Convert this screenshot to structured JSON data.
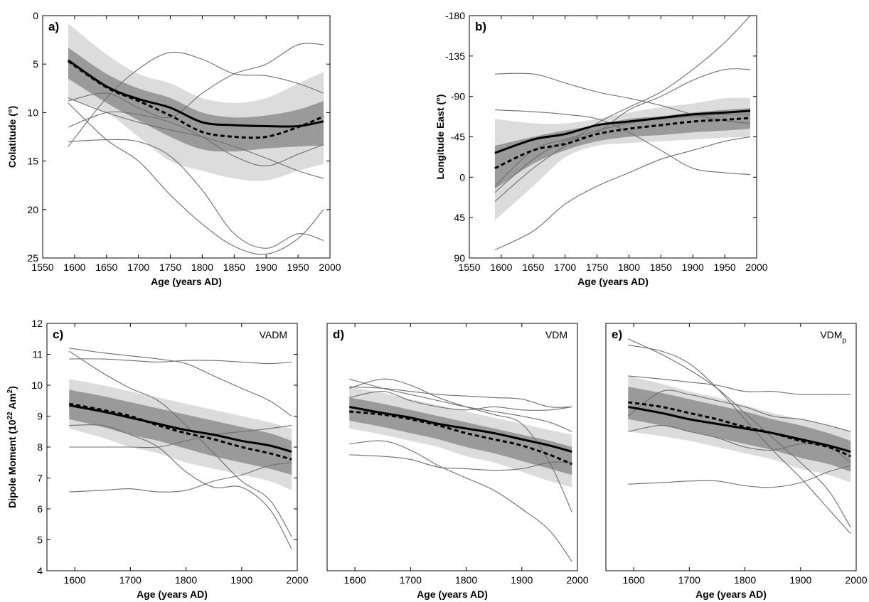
{
  "chart_data": [
    {
      "id": "a",
      "type": "line",
      "panel_label": "a)",
      "tag": "",
      "xlabel": "Age (years AD)",
      "ylabel": "Colatitude (°)",
      "xlim": [
        1550,
        2000
      ],
      "ylim": [
        0,
        25
      ],
      "y_inverted": true,
      "xticks": [
        1550,
        1600,
        1650,
        1700,
        1750,
        1800,
        1850,
        1900,
        1950,
        2000
      ],
      "yticks": [
        0,
        5,
        10,
        15,
        20,
        25
      ],
      "x": [
        1590,
        1650,
        1700,
        1750,
        1800,
        1850,
        1900,
        1950,
        1990
      ],
      "bands": [
        {
          "name": "outer",
          "color": "#dcdcdc",
          "lower": [
            0.8,
            4.0,
            6.0,
            7.0,
            8.5,
            9.0,
            8.5,
            7.0,
            5.8
          ],
          "upper": [
            8.5,
            10.0,
            12.5,
            15.0,
            16.0,
            16.8,
            17.0,
            16.0,
            15.3
          ]
        },
        {
          "name": "inner",
          "color": "#9a9a9a",
          "lower": [
            3.3,
            6.0,
            7.5,
            8.5,
            10.0,
            10.5,
            10.3,
            9.7,
            8.8
          ],
          "upper": [
            6.5,
            9.0,
            10.8,
            12.5,
            13.8,
            14.0,
            13.7,
            13.5,
            13.4
          ]
        }
      ],
      "series": [
        {
          "name": "",
          "role": "mean",
          "color": "#000000",
          "values": [
            4.6,
            7.3,
            8.6,
            9.5,
            11.0,
            11.3,
            11.4,
            11.4,
            10.9
          ]
        },
        {
          "name": "",
          "role": "median",
          "color": "#000000",
          "values": [
            4.7,
            7.4,
            8.8,
            10.3,
            12.0,
            12.5,
            12.5,
            11.5,
            10.4
          ]
        }
      ],
      "traces": [
        [
          8.5,
          10.0,
          11.0,
          11.8,
          12.5,
          13.5,
          14.7,
          16.0,
          16.8
        ],
        [
          13.5,
          8.5,
          5.5,
          3.8,
          4.5,
          6.0,
          6.2,
          7.0,
          8.0
        ],
        [
          9.0,
          12.8,
          15.0,
          18.5,
          21.5,
          23.8,
          24.6,
          23.0,
          20.0
        ],
        [
          11.5,
          10.0,
          10.2,
          11.0,
          12.5,
          14.5,
          15.5,
          14.3,
          13.3
        ],
        [
          13.0,
          12.8,
          13.0,
          14.5,
          18.0,
          22.5,
          24.0,
          22.5,
          23.2
        ],
        [
          8.8,
          8.0,
          9.5,
          10.5,
          8.0,
          6.0,
          5.0,
          3.0,
          3.0
        ]
      ]
    },
    {
      "id": "b",
      "type": "line",
      "panel_label": "b)",
      "tag": "",
      "xlabel": "Age (years AD)",
      "ylabel": "Longitude East (°)",
      "xlim": [
        1550,
        2000
      ],
      "ylim": [
        -180,
        90
      ],
      "y_inverted": true,
      "xticks": [
        1550,
        1600,
        1650,
        1700,
        1750,
        1800,
        1850,
        1900,
        1950,
        2000
      ],
      "yticks": [
        -180,
        -135,
        -90,
        -45,
        0,
        45,
        90
      ],
      "x": [
        1590,
        1650,
        1700,
        1750,
        1800,
        1850,
        1900,
        1950,
        1990
      ],
      "bands": [
        {
          "name": "outer",
          "color": "#dcdcdc",
          "lower": [
            -65,
            -60,
            -60,
            -65,
            -72,
            -78,
            -82,
            -88,
            -88
          ],
          "upper": [
            48,
            10,
            -22,
            -35,
            -38,
            -40,
            -42,
            -44,
            -45
          ]
        },
        {
          "name": "inner",
          "color": "#9a9a9a",
          "lower": [
            -35,
            -45,
            -52,
            -58,
            -65,
            -68,
            -72,
            -75,
            -77
          ],
          "upper": [
            13,
            -15,
            -30,
            -40,
            -45,
            -47,
            -50,
            -52,
            -54
          ]
        }
      ],
      "series": [
        {
          "name": "",
          "role": "mean",
          "color": "#000000",
          "values": [
            -27,
            -42,
            -48,
            -58,
            -62,
            -66,
            -70,
            -72,
            -74
          ]
        },
        {
          "name": "",
          "role": "median",
          "color": "#000000",
          "values": [
            -10,
            -30,
            -37,
            -48,
            -54,
            -58,
            -62,
            -64,
            -66
          ]
        }
      ],
      "traces": [
        [
          -115,
          -115,
          -105,
          -95,
          -88,
          -80,
          -70,
          -63,
          -60
        ],
        [
          -75,
          -73,
          -70,
          -65,
          -50,
          -30,
          -10,
          -5,
          -3
        ],
        [
          81,
          60,
          30,
          10,
          -5,
          -20,
          -30,
          -40,
          -45
        ],
        [
          27,
          -10,
          -35,
          -60,
          -78,
          -95,
          -120,
          -150,
          -180
        ],
        [
          17,
          -20,
          -40,
          -50,
          -75,
          -90,
          -108,
          -120,
          -120
        ],
        [
          10,
          -30,
          -42,
          -52,
          -60,
          -65,
          -68,
          -70,
          -70
        ]
      ]
    },
    {
      "id": "c",
      "type": "line",
      "panel_label": "c)",
      "tag": "VADM",
      "xlabel": "Age (years AD)",
      "ylabel": "Dipole Moment (10²² Am²)",
      "xlim": [
        1550,
        2000
      ],
      "ylim": [
        4,
        12
      ],
      "y_inverted": false,
      "xticks": [
        1600,
        1700,
        1800,
        1900,
        2000
      ],
      "yticks": [
        4,
        5,
        6,
        7,
        8,
        9,
        10,
        11,
        12
      ],
      "x": [
        1590,
        1650,
        1700,
        1750,
        1800,
        1850,
        1900,
        1950,
        1990
      ],
      "bands": [
        {
          "name": "outer",
          "color": "#dcdcdc",
          "lower": [
            8.6,
            8.3,
            8.0,
            7.8,
            7.5,
            7.3,
            7.1,
            6.9,
            6.6
          ],
          "upper": [
            10.2,
            10.0,
            9.8,
            9.6,
            9.4,
            9.2,
            9.0,
            8.8,
            8.6
          ]
        },
        {
          "name": "inner",
          "color": "#9a9a9a",
          "lower": [
            8.9,
            8.65,
            8.4,
            8.2,
            7.95,
            7.7,
            7.5,
            7.3,
            7.1
          ],
          "upper": [
            9.85,
            9.65,
            9.45,
            9.25,
            9.05,
            8.85,
            8.65,
            8.45,
            8.2
          ]
        }
      ],
      "series": [
        {
          "name": "",
          "role": "mean",
          "color": "#000000",
          "values": [
            9.35,
            9.15,
            8.95,
            8.75,
            8.55,
            8.4,
            8.2,
            8.05,
            7.85
          ]
        },
        {
          "name": "",
          "role": "median",
          "color": "#000000",
          "values": [
            9.4,
            9.2,
            9.0,
            8.7,
            8.45,
            8.25,
            8.0,
            7.8,
            7.6
          ]
        }
      ],
      "traces": [
        [
          11.2,
          11.05,
          10.95,
          10.85,
          10.7,
          10.3,
          9.9,
          9.5,
          9.0
        ],
        [
          10.85,
          10.85,
          10.8,
          10.75,
          10.8,
          10.8,
          10.75,
          10.7,
          10.75
        ],
        [
          11.1,
          10.4,
          9.9,
          9.5,
          8.7,
          7.8,
          6.9,
          6.3,
          5.1
        ],
        [
          8.7,
          8.7,
          8.4,
          8.0,
          7.2,
          6.7,
          6.7,
          6.0,
          4.7
        ],
        [
          8.0,
          8.0,
          8.0,
          8.0,
          8.2,
          8.4,
          8.5,
          8.6,
          8.7
        ],
        [
          6.55,
          6.6,
          6.65,
          6.55,
          6.6,
          6.9,
          7.1,
          7.4,
          7.5
        ]
      ]
    },
    {
      "id": "d",
      "type": "line",
      "panel_label": "d)",
      "tag": "VDM",
      "xlabel": "Age (years AD)",
      "ylabel": "",
      "xlim": [
        1550,
        2000
      ],
      "ylim": [
        4,
        12
      ],
      "y_inverted": false,
      "xticks": [
        1600,
        1700,
        1800,
        1900,
        2000
      ],
      "yticks": [],
      "x": [
        1590,
        1650,
        1700,
        1750,
        1800,
        1850,
        1900,
        1950,
        1990
      ],
      "bands": [
        {
          "name": "outer",
          "color": "#dcdcdc",
          "lower": [
            8.6,
            8.4,
            8.2,
            8.0,
            7.7,
            7.5,
            7.2,
            6.9,
            6.7
          ],
          "upper": [
            9.95,
            9.75,
            9.55,
            9.35,
            9.15,
            8.95,
            8.75,
            8.55,
            8.4
          ]
        },
        {
          "name": "inner",
          "color": "#9a9a9a",
          "lower": [
            8.85,
            8.65,
            8.45,
            8.25,
            8.0,
            7.8,
            7.55,
            7.3,
            7.1
          ],
          "upper": [
            9.6,
            9.4,
            9.2,
            9.0,
            8.8,
            8.6,
            8.4,
            8.2,
            8.0
          ]
        }
      ],
      "series": [
        {
          "name": "",
          "role": "mean",
          "color": "#000000",
          "values": [
            9.3,
            9.1,
            8.95,
            8.75,
            8.6,
            8.45,
            8.25,
            8.05,
            7.85
          ]
        },
        {
          "name": "",
          "role": "median",
          "color": "#000000",
          "values": [
            9.15,
            9.05,
            8.9,
            8.7,
            8.45,
            8.25,
            8.05,
            7.75,
            7.45
          ]
        }
      ],
      "traces": [
        [
          10.2,
          9.9,
          9.7,
          9.5,
          9.3,
          9.15,
          9.0,
          8.8,
          8.5
        ],
        [
          9.9,
          10.2,
          10.0,
          9.6,
          9.3,
          9.05,
          8.75,
          7.5,
          5.9
        ],
        [
          9.6,
          9.8,
          9.5,
          9.3,
          9.2,
          9.3,
          9.2,
          9.2,
          9.3
        ],
        [
          8.1,
          8.2,
          7.9,
          7.4,
          7.0,
          6.6,
          6.0,
          5.3,
          4.3
        ],
        [
          7.75,
          7.7,
          7.6,
          7.35,
          7.3,
          7.25,
          7.3,
          7.5,
          7.5
        ],
        [
          9.95,
          9.9,
          9.8,
          9.7,
          9.65,
          9.6,
          9.55,
          9.3,
          9.3
        ]
      ]
    },
    {
      "id": "e",
      "type": "line",
      "panel_label": "e)",
      "tag_main": "VDM",
      "tag_sub": "p",
      "xlabel": "Age (years AD)",
      "ylabel": "",
      "xlim": [
        1550,
        2000
      ],
      "ylim": [
        4,
        12
      ],
      "y_inverted": false,
      "xticks": [
        1600,
        1700,
        1800,
        1900,
        2000
      ],
      "yticks": [],
      "x": [
        1590,
        1650,
        1700,
        1750,
        1800,
        1850,
        1900,
        1950,
        1990
      ],
      "bands": [
        {
          "name": "outer",
          "color": "#dcdcdc",
          "lower": [
            8.5,
            8.35,
            8.2,
            8.0,
            7.8,
            7.6,
            7.3,
            7.1,
            6.85
          ],
          "upper": [
            10.3,
            10.05,
            9.8,
            9.6,
            9.35,
            9.1,
            8.9,
            8.7,
            8.5
          ]
        },
        {
          "name": "inner",
          "color": "#9a9a9a",
          "lower": [
            8.9,
            8.7,
            8.5,
            8.3,
            8.1,
            7.9,
            7.65,
            7.45,
            7.2
          ],
          "upper": [
            9.95,
            9.75,
            9.55,
            9.35,
            9.15,
            8.9,
            8.7,
            8.45,
            8.2
          ]
        }
      ],
      "series": [
        {
          "name": "",
          "role": "mean",
          "color": "#000000",
          "values": [
            9.3,
            9.1,
            8.9,
            8.75,
            8.6,
            8.45,
            8.25,
            8.05,
            7.85
          ]
        },
        {
          "name": "",
          "role": "median",
          "color": "#000000",
          "values": [
            9.45,
            9.3,
            9.1,
            8.9,
            8.65,
            8.45,
            8.2,
            8.0,
            7.7
          ]
        }
      ],
      "traces": [
        [
          11.5,
          11.0,
          10.5,
          9.9,
          9.1,
          8.3,
          7.5,
          6.6,
          5.4
        ],
        [
          11.3,
          11.1,
          10.7,
          9.9,
          8.9,
          7.9,
          7.0,
          6.0,
          5.2
        ],
        [
          10.3,
          10.2,
          10.1,
          10.0,
          9.8,
          9.8,
          9.7,
          9.7,
          9.7
        ],
        [
          9.0,
          9.8,
          9.7,
          9.5,
          9.3,
          9.0,
          8.9,
          8.7,
          8.5
        ],
        [
          8.5,
          8.7,
          8.5,
          8.3,
          8.0,
          7.9,
          8.1,
          8.0,
          7.5
        ],
        [
          6.8,
          6.85,
          6.9,
          6.9,
          6.75,
          6.7,
          6.85,
          7.2,
          7.4
        ]
      ]
    }
  ]
}
